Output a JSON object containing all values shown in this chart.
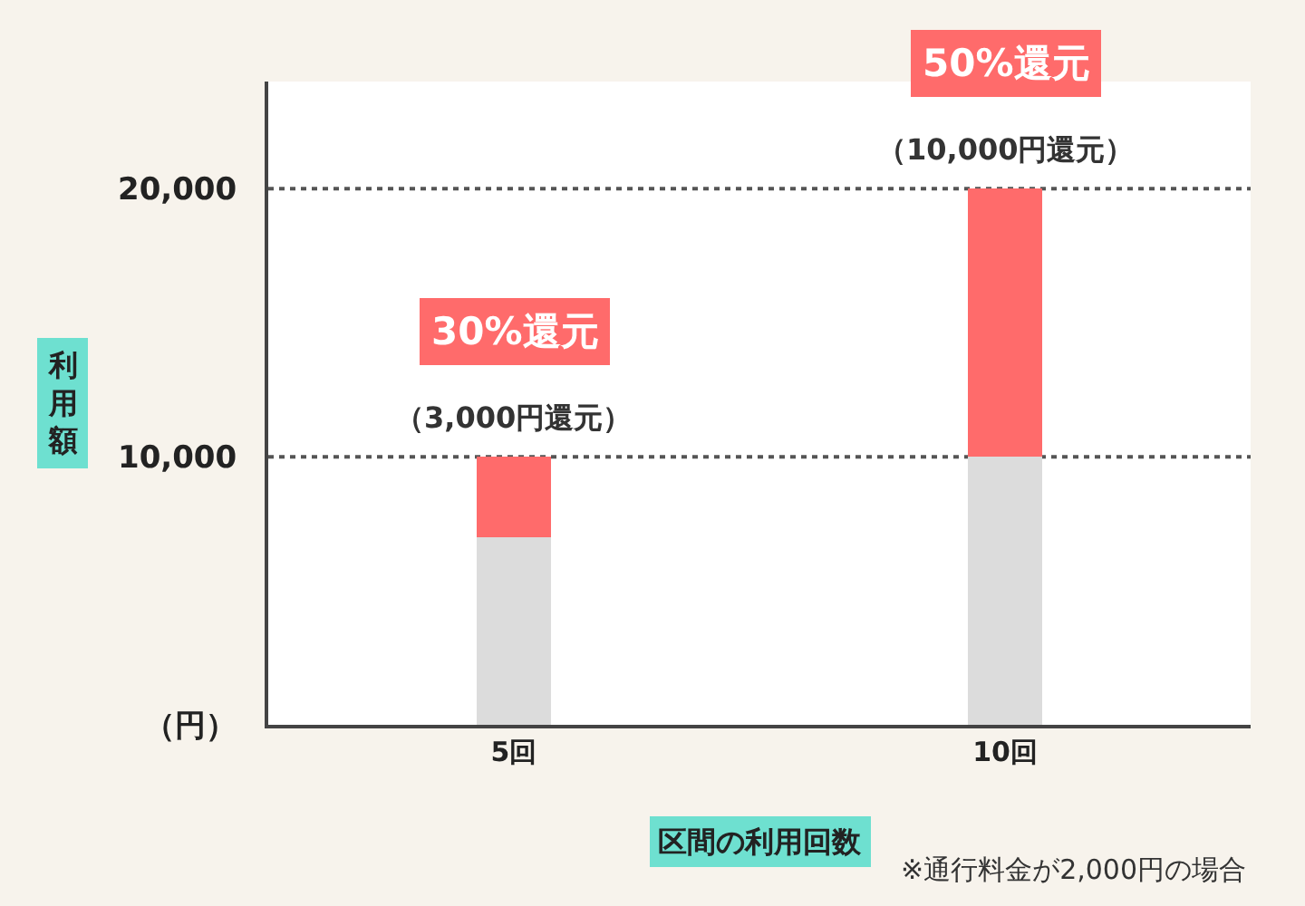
{
  "chart_data": {
    "type": "bar",
    "stacked": true,
    "categories": [
      "5回",
      "10回"
    ],
    "series": [
      {
        "color": "#dcdcdc",
        "values": [
          7000,
          10000
        ]
      },
      {
        "color": "#ff6b6b",
        "values": [
          3000,
          10000
        ]
      }
    ],
    "ylim": [
      0,
      24000
    ],
    "yticks": [
      {
        "value": 0,
        "label": "（円）"
      },
      {
        "value": 10000,
        "label": "10,000"
      },
      {
        "value": 20000,
        "label": "20,000"
      }
    ],
    "grid": "y",
    "ylabel": "利用額",
    "xlabel": "区間の利用回数",
    "annotations": [
      {
        "text": "30%還元",
        "x": "5回",
        "y": 10000
      },
      {
        "text": "（3,000円還元）",
        "x": "5回",
        "y": 10000
      },
      {
        "text": "50%還元",
        "x": "10回",
        "y": 20000
      },
      {
        "text": "（10,000円還元）",
        "x": "10回",
        "y": 20000
      },
      "※通行料金が2,000円の場合"
    ]
  }
}
